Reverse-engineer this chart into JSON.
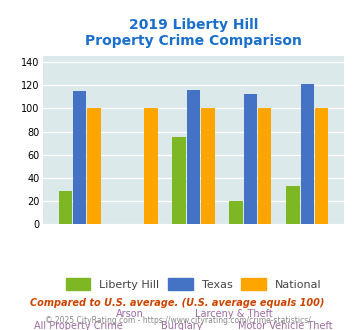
{
  "title_line1": "2019 Liberty Hill",
  "title_line2": "Property Crime Comparison",
  "categories": [
    "All Property Crime",
    "Arson",
    "Burglary",
    "Larceny & Theft",
    "Motor Vehicle Theft"
  ],
  "liberty_hill": [
    29,
    0,
    75,
    20,
    33
  ],
  "texas": [
    115,
    0,
    116,
    112,
    121
  ],
  "national": [
    100,
    100,
    100,
    100,
    100
  ],
  "bar_color_liberty": "#7db824",
  "bar_color_texas": "#4472c4",
  "bar_color_national": "#ffa500",
  "title_color": "#1a6fcc",
  "label_color": "#9e6ba0",
  "legend_labels": [
    "Liberty Hill",
    "Texas",
    "National"
  ],
  "ylim": [
    0,
    145
  ],
  "yticks": [
    0,
    20,
    40,
    60,
    80,
    100,
    120,
    140
  ],
  "footnote1": "Compared to U.S. average. (U.S. average equals 100)",
  "footnote2": "© 2025 CityRating.com - https://www.cityrating.com/crime-statistics/",
  "bg_color": "#dce9ea",
  "category_labels_row1": [
    "",
    "Arson",
    "",
    "Larceny & Theft",
    ""
  ],
  "category_labels_row2": [
    "All Property Crime",
    "",
    "Burglary",
    "",
    "Motor Vehicle Theft"
  ]
}
